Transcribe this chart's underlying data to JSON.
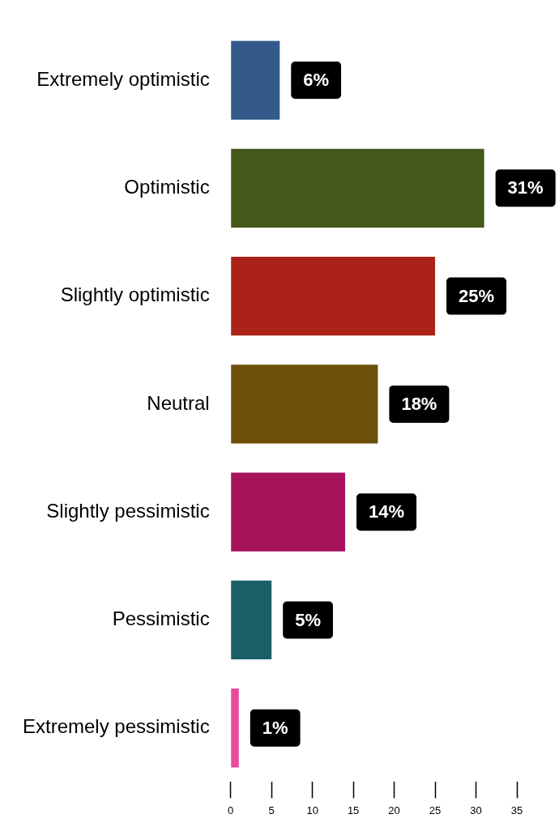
{
  "chart_data": {
    "type": "bar",
    "orientation": "horizontal",
    "categories": [
      "Extremely optimistic",
      "Optimistic",
      "Slightly optimistic",
      "Neutral",
      "Slightly pessimistic",
      "Pessimistic",
      "Extremely pessimistic"
    ],
    "values": [
      6,
      31,
      25,
      18,
      14,
      5,
      1
    ],
    "colors": [
      "#335a8a",
      "#44581c",
      "#ab2219",
      "#6e4f0a",
      "#a5135b",
      "#1a5e66",
      "#e84b9c"
    ],
    "value_labels": [
      "6%",
      "31%",
      "25%",
      "18%",
      "14%",
      "5%",
      "1%"
    ],
    "xlim": [
      0,
      35
    ],
    "xticks": [
      0,
      5,
      10,
      15,
      20,
      25,
      30,
      35
    ]
  }
}
